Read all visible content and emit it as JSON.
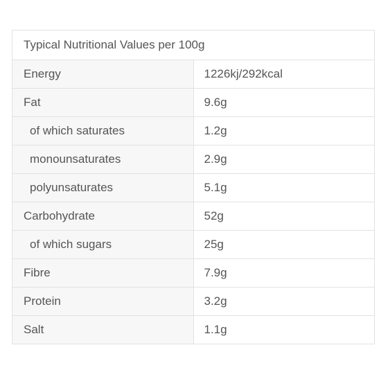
{
  "table": {
    "heading": "Typical Nutritional Values per 100g",
    "rows": [
      {
        "nutrient": "Energy",
        "value": "1226kj/292kcal"
      },
      {
        "nutrient": "Fat",
        "value": "9.6g"
      },
      {
        "nutrient": "of which saturates",
        "value": "1.2g"
      },
      {
        "nutrient": "monounsaturates",
        "value": "2.9g"
      },
      {
        "nutrient": "polyunsaturates",
        "value": "5.1g"
      },
      {
        "nutrient": "Carbohydrate",
        "value": "52g"
      },
      {
        "nutrient": "of which sugars",
        "value": "25g"
      },
      {
        "nutrient": "Fibre",
        "value": "7.9g"
      },
      {
        "nutrient": "Protein",
        "value": "3.2g"
      },
      {
        "nutrient": "Salt",
        "value": "1.1g"
      }
    ]
  }
}
